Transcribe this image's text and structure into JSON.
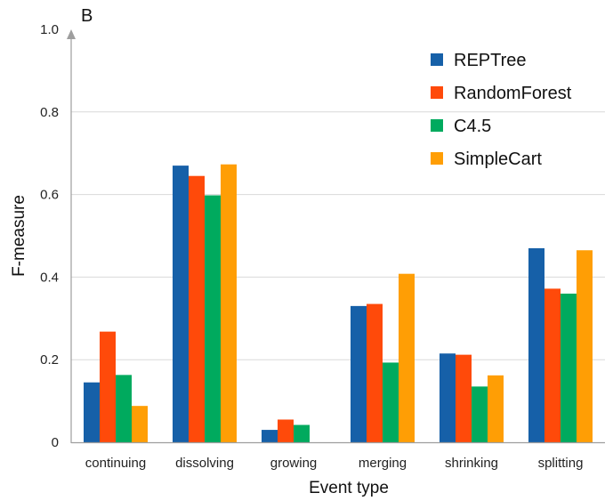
{
  "chart_data": {
    "type": "bar",
    "panel_label": "B",
    "title": "",
    "xlabel": "Event type",
    "ylabel": "F-measure",
    "ylim": [
      0,
      1.0
    ],
    "yticks": [
      {
        "value": 0,
        "label": "0"
      },
      {
        "value": 0.2,
        "label": "0.2"
      },
      {
        "value": 0.4,
        "label": "0.4"
      },
      {
        "value": 0.6,
        "label": "0.6"
      },
      {
        "value": 0.8,
        "label": "0.8"
      },
      {
        "value": 1.0,
        "label": "1.0"
      }
    ],
    "grid": true,
    "legend_position": "top-right",
    "categories": [
      "continuing",
      "dissolving",
      "growing",
      "merging",
      "shrinking",
      "splitting"
    ],
    "series": [
      {
        "name": "REPTree",
        "color": "#1660a8",
        "values": [
          0.145,
          0.67,
          0.03,
          0.33,
          0.215,
          0.47
        ]
      },
      {
        "name": "RandomForest",
        "color": "#ff4a0a",
        "values": [
          0.268,
          0.645,
          0.055,
          0.335,
          0.212,
          0.372
        ]
      },
      {
        "name": "C4.5",
        "color": "#00aa5e",
        "values": [
          0.163,
          0.598,
          0.042,
          0.193,
          0.135,
          0.36
        ]
      },
      {
        "name": "SimpleCart",
        "color": "#ff9e05",
        "values": [
          0.088,
          0.673,
          0.0,
          0.408,
          0.162,
          0.465
        ]
      }
    ]
  }
}
